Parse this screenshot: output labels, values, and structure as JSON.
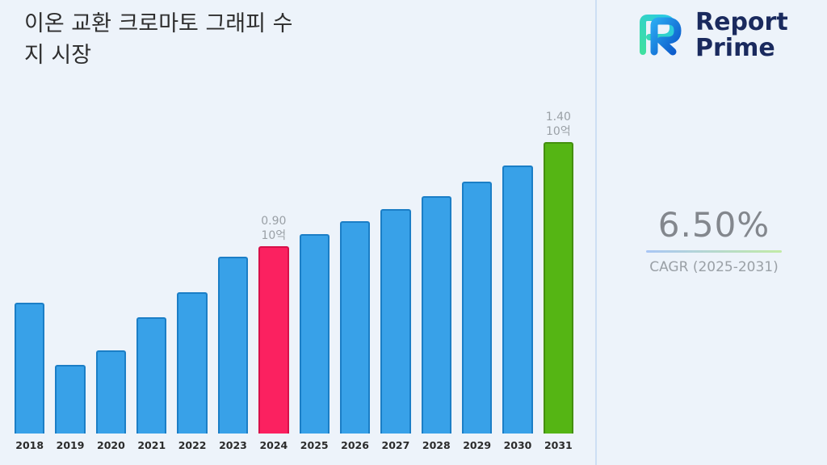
{
  "header": {
    "title_lines": [
      "이온 교환 크로마토 그래피 수",
      "지 시장"
    ]
  },
  "logo": {
    "name_line1": "Report",
    "name_line2": "Prime"
  },
  "stats": {
    "cagr_value": "6.50%",
    "cagr_label": "CAGR (2025-2031)"
  },
  "chart_data": {
    "type": "bar",
    "title": "이온 교환 크로마토 그래피 수지 시장",
    "categories": [
      "2018",
      "2019",
      "2020",
      "2021",
      "2022",
      "2023",
      "2024",
      "2025",
      "2026",
      "2027",
      "2028",
      "2029",
      "2030",
      "2031"
    ],
    "values": [
      0.63,
      0.33,
      0.4,
      0.56,
      0.68,
      0.85,
      0.9,
      0.96,
      1.02,
      1.08,
      1.14,
      1.21,
      1.29,
      1.4
    ],
    "unit": "10억",
    "ylim": [
      0,
      1.63
    ],
    "grid": false,
    "legend": "none",
    "annotations": {
      "2024": [
        "0.90",
        "10억"
      ],
      "2031": [
        "1.40",
        "10억"
      ]
    },
    "colors": {
      "default": "#38a1e8",
      "default_border": "#1b7ec6",
      "annotation_text": "#9aa0a6"
    },
    "bar_colors": {
      "2024": "#fb2160",
      "2031": "#55b514"
    },
    "bar_borders": {
      "2024": "#d61049",
      "2031": "#448f0e"
    }
  }
}
